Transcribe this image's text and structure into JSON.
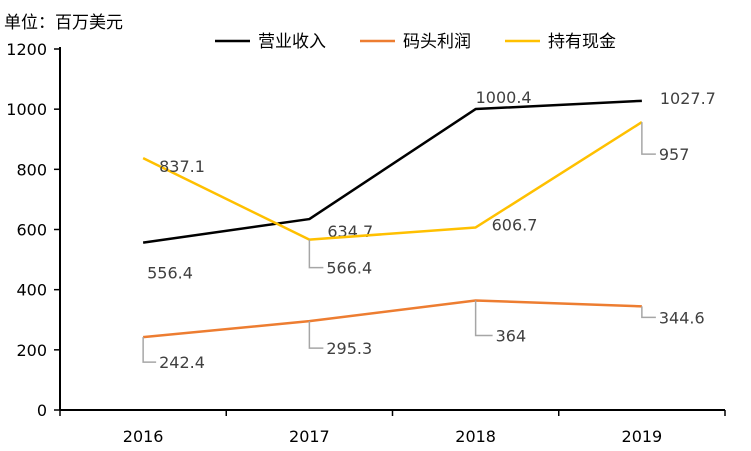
{
  "chart_data": {
    "type": "line",
    "unit_label": "单位：百万美元",
    "categories": [
      "2016",
      "2017",
      "2018",
      "2019"
    ],
    "ylim": [
      0,
      1200
    ],
    "yticks": [
      "0",
      "200",
      "400",
      "600",
      "800",
      "1000",
      "1200"
    ],
    "grid": false,
    "legend_position": "top",
    "series": [
      {
        "name": "营业收入",
        "color": "#000000",
        "values": [
          556.4,
          634.7,
          1000.4,
          1027.7
        ],
        "labels": [
          "556.4",
          "634.7",
          "1000.4",
          "1027.7"
        ]
      },
      {
        "name": "码头利润",
        "color": "#ED7D31",
        "values": [
          242.4,
          295.3,
          364,
          344.6
        ],
        "labels": [
          "242.4",
          "295.3",
          "364",
          "344.6"
        ]
      },
      {
        "name": "持有现金",
        "color": "#FFC000",
        "values": [
          837.1,
          566.4,
          606.7,
          957
        ],
        "labels": [
          "837.1",
          "566.4",
          "606.7",
          "957"
        ]
      }
    ]
  }
}
